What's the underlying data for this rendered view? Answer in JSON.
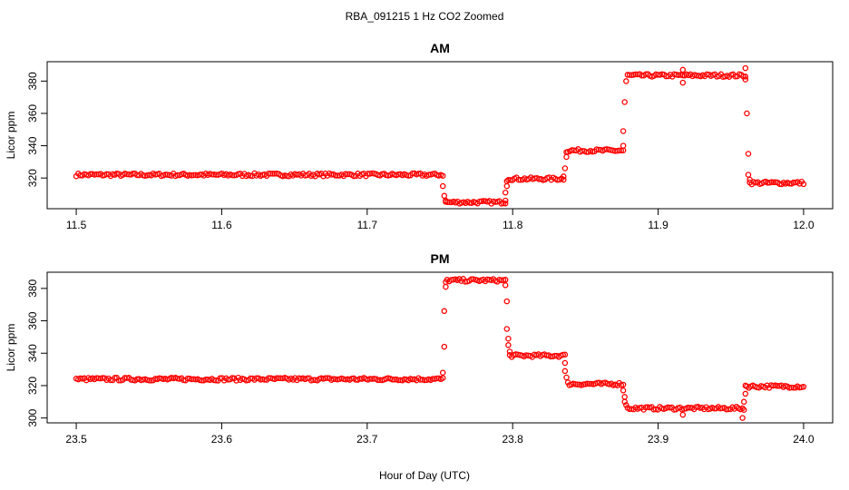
{
  "figure": {
    "title": "RBA_091215  1 Hz CO2 Zoomed",
    "xlabel": "Hour of Day (UTC)"
  },
  "colors": {
    "points": "#ff0000",
    "axis": "#000000",
    "background": "#ffffff"
  },
  "chart_data": [
    {
      "type": "scatter",
      "title": "AM",
      "ylabel": "Licor ppm",
      "xlim": [
        11.5,
        12.0
      ],
      "ylim": [
        301,
        392
      ],
      "xticks": [
        11.5,
        11.6,
        11.7,
        11.8,
        11.9,
        12.0
      ],
      "xtick_labels": [
        "11.5",
        "11.6",
        "11.7",
        "11.8",
        "11.9",
        "12.0"
      ],
      "yticks": [
        320,
        340,
        360,
        380
      ],
      "ytick_labels": [
        "320",
        "340",
        "360",
        "380"
      ],
      "grid": false,
      "legend": "none",
      "segments": [
        {
          "x": [
            11.5,
            11.752
          ],
          "y": 322
        },
        {
          "x": [
            11.754,
            11.795
          ],
          "y": 305
        },
        {
          "x": [
            11.797,
            11.835
          ],
          "y": 319.5
        },
        {
          "x": [
            11.838,
            11.876
          ],
          "y": 337
        },
        {
          "x": [
            11.879,
            11.96
          ],
          "y": 383.5
        },
        {
          "x": [
            11.963,
            12.0
          ],
          "y": 317
        }
      ],
      "transition_points": [
        [
          11.752,
          315
        ],
        [
          11.753,
          309
        ],
        [
          11.754,
          306
        ],
        [
          11.795,
          306
        ],
        [
          11.795,
          311
        ],
        [
          11.796,
          315
        ],
        [
          11.796,
          318
        ],
        [
          11.835,
          321
        ],
        [
          11.836,
          326
        ],
        [
          11.837,
          333
        ],
        [
          11.837,
          336
        ],
        [
          11.876,
          340
        ],
        [
          11.876,
          349
        ],
        [
          11.877,
          367
        ],
        [
          11.878,
          380
        ],
        [
          11.96,
          381
        ],
        [
          11.961,
          360
        ],
        [
          11.962,
          335
        ],
        [
          11.962,
          322
        ],
        [
          11.963,
          319
        ],
        [
          11.917,
          379
        ],
        [
          11.917,
          387
        ],
        [
          11.96,
          388
        ]
      ]
    },
    {
      "type": "scatter",
      "title": "PM",
      "ylabel": "Licor ppm",
      "xlim": [
        23.5,
        24.0
      ],
      "ylim": [
        297,
        390
      ],
      "xticks": [
        23.5,
        23.6,
        23.7,
        23.8,
        23.9,
        24.0
      ],
      "xtick_labels": [
        "23.5",
        "23.6",
        "23.7",
        "23.8",
        "23.9",
        "24.0"
      ],
      "yticks": [
        300,
        320,
        340,
        360,
        380
      ],
      "ytick_labels": [
        "300",
        "320",
        "340",
        "360",
        "380"
      ],
      "grid": false,
      "legend": "none",
      "segments": [
        {
          "x": [
            23.5,
            23.752
          ],
          "y": 324
        },
        {
          "x": [
            23.755,
            23.795
          ],
          "y": 385
        },
        {
          "x": [
            23.798,
            23.836
          ],
          "y": 338.5
        },
        {
          "x": [
            23.839,
            23.876
          ],
          "y": 321
        },
        {
          "x": [
            23.879,
            23.958
          ],
          "y": 306
        },
        {
          "x": [
            23.961,
            24.0
          ],
          "y": 319.5
        }
      ],
      "transition_points": [
        [
          23.752,
          328
        ],
        [
          23.753,
          344
        ],
        [
          23.753,
          366
        ],
        [
          23.754,
          381
        ],
        [
          23.754,
          384
        ],
        [
          23.795,
          382
        ],
        [
          23.796,
          372
        ],
        [
          23.796,
          355
        ],
        [
          23.797,
          349
        ],
        [
          23.797,
          345
        ],
        [
          23.798,
          341
        ],
        [
          23.836,
          334
        ],
        [
          23.836,
          329
        ],
        [
          23.837,
          325
        ],
        [
          23.838,
          322
        ],
        [
          23.876,
          317
        ],
        [
          23.877,
          313
        ],
        [
          23.877,
          310
        ],
        [
          23.878,
          308
        ],
        [
          23.958,
          300
        ],
        [
          23.959,
          305
        ],
        [
          23.959,
          310
        ],
        [
          23.96,
          315
        ],
        [
          23.96,
          320
        ],
        [
          23.917,
          302
        ]
      ]
    }
  ]
}
